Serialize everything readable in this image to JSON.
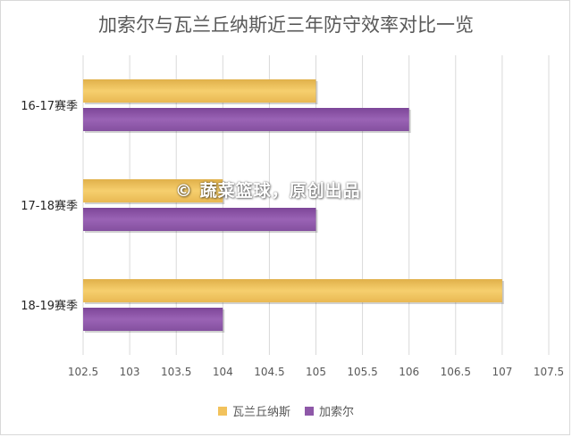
{
  "chart_data": {
    "type": "bar",
    "orientation": "horizontal",
    "title": "加索尔与瓦兰丘纳斯近三年防守效率对比一览",
    "categories": [
      "16-17赛季",
      "17-18赛季",
      "18-19赛季"
    ],
    "series": [
      {
        "name": "瓦兰丘纳斯",
        "color": "#f2c25c",
        "values": [
          105,
          104,
          107
        ]
      },
      {
        "name": "加索尔",
        "color": "#8e58a8",
        "values": [
          106,
          105,
          104
        ]
      }
    ],
    "xlim": [
      102.5,
      107.5
    ],
    "xticks": [
      "102.5",
      "103",
      "103.5",
      "104",
      "104.5",
      "105",
      "105.5",
      "106",
      "106.5",
      "107",
      "107.5"
    ],
    "grid": true,
    "legend": "bottom"
  },
  "watermark": "© 蔬菜篮球，原创出品"
}
